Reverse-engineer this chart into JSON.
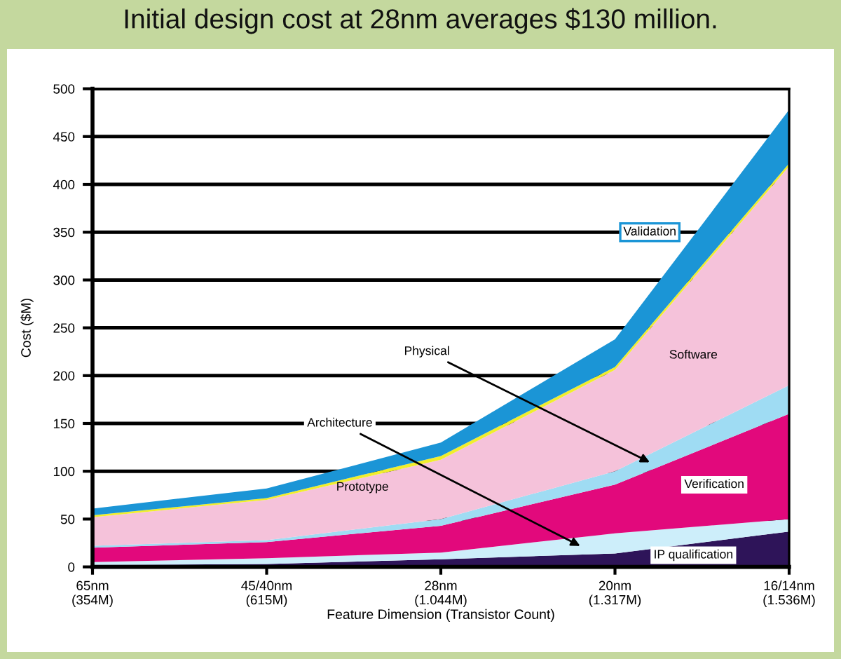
{
  "chart_data": {
    "type": "area",
    "stacked": true,
    "title": "Initial design cost at 28nm averages $130 million.",
    "xlabel": "Feature Dimension (Transistor Count)",
    "ylabel": "Cost ($M)",
    "categories": [
      "65nm\n(354M)",
      "45/40nm\n(615M)",
      "28nm\n(1.044M)",
      "20nm\n(1.317M)",
      "16/14nm\n(1.536M)"
    ],
    "ylim": [
      0,
      500
    ],
    "yticks": [
      0,
      50,
      100,
      150,
      200,
      250,
      300,
      350,
      400,
      450,
      500
    ],
    "grid": "y",
    "series": [
      {
        "name": "IP qualification",
        "color": "#2e1459",
        "values": [
          2,
          3,
          8,
          14,
          37
        ]
      },
      {
        "name": "Architecture",
        "color": "#cdeefa",
        "values": [
          3,
          6,
          7,
          21,
          13
        ]
      },
      {
        "name": "Verification",
        "color": "#e2097c",
        "values": [
          15,
          17,
          28,
          51,
          110
        ]
      },
      {
        "name": "Physical",
        "color": "#9fdcf3",
        "values": [
          2,
          2,
          7,
          14,
          30
        ]
      },
      {
        "name": "Software",
        "color": "#f5c2da",
        "values": [
          30,
          42,
          62,
          106,
          229
        ]
      },
      {
        "name": "Prototype",
        "color": "#f0ee2c",
        "values": [
          2,
          2,
          4,
          3,
          3
        ]
      },
      {
        "name": "Validation",
        "color": "#1b95d6",
        "values": [
          7,
          10,
          14,
          29,
          56
        ]
      }
    ]
  }
}
